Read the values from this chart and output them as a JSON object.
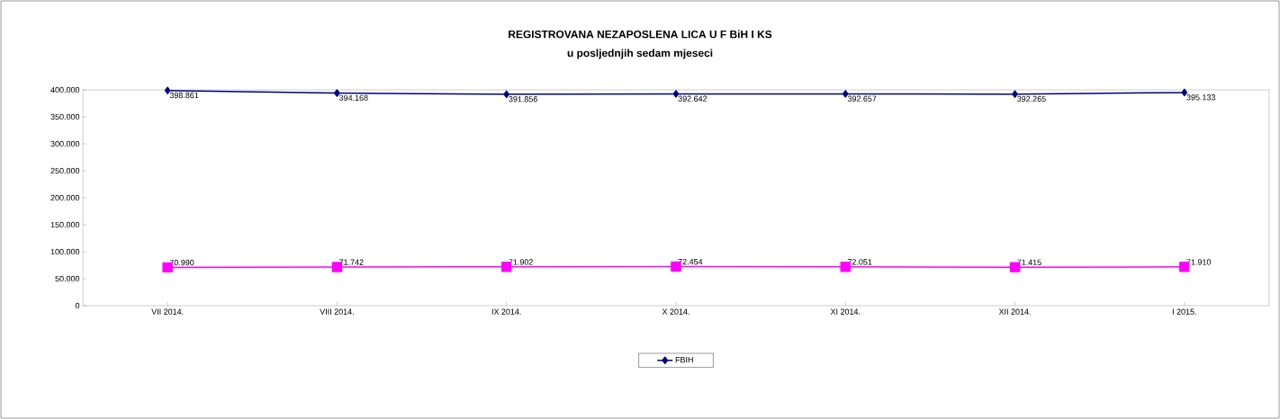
{
  "chart_data": {
    "type": "line",
    "title": "REGISTROVANA NEZAPOSLENA LICA U F BiH I KS",
    "subtitle": "u posljednjih sedam mjeseci",
    "categories": [
      "VII 2014.",
      "VIII 2014.",
      "IX 2014.",
      "X 2014.",
      "XI 2014.",
      "XII 2014.",
      "I 2015."
    ],
    "series": [
      {
        "name": "FBIH",
        "color": "#000080",
        "marker": "diamond",
        "values": [
          398861,
          394168,
          391856,
          392642,
          392657,
          392265,
          395133
        ],
        "value_labels": [
          "398.861",
          "394.168",
          "391.856",
          "392.642",
          "392.657",
          "392.265",
          "395.133"
        ]
      },
      {
        "color": "#ff00ff",
        "marker": "square",
        "values": [
          70990,
          71742,
          71902,
          72454,
          72051,
          71415,
          71910
        ],
        "value_labels": [
          "70.990",
          "71.742",
          "71.902",
          "72.454",
          "72.051",
          "71.415",
          "71.910"
        ]
      }
    ],
    "ylim": [
      0,
      400000
    ],
    "yticks": [
      {
        "value": 0,
        "label": "0"
      },
      {
        "value": 50000,
        "label": "50.000"
      },
      {
        "value": 100000,
        "label": "100.000"
      },
      {
        "value": 150000,
        "label": "150.000"
      },
      {
        "value": 200000,
        "label": "200.000"
      },
      {
        "value": 250000,
        "label": "250.000"
      },
      {
        "value": 300000,
        "label": "300.000"
      },
      {
        "value": 350000,
        "label": "350.000"
      },
      {
        "value": 400000,
        "label": "400.000"
      }
    ],
    "legend": "bottom",
    "grid": false
  }
}
